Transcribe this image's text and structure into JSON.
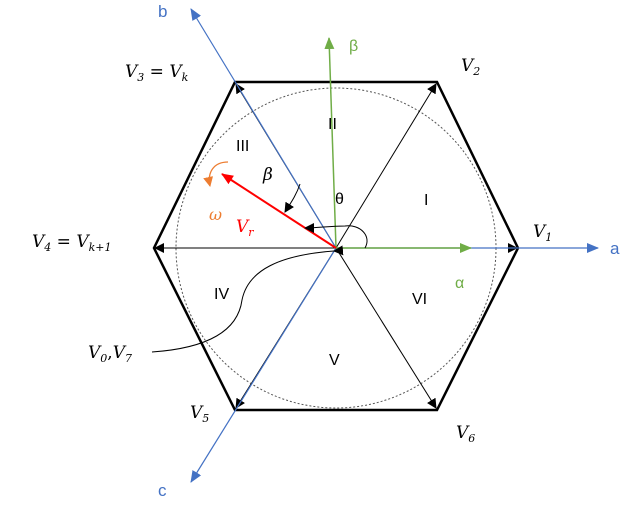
{
  "axes": {
    "a": "a",
    "b": "b",
    "c": "c",
    "alpha": "α",
    "beta": "β"
  },
  "vectors": {
    "v1": {
      "main": "V",
      "sub": "1"
    },
    "v2": {
      "main": "V",
      "sub": "2"
    },
    "v3": {
      "main": "V",
      "sub": "3",
      "eq": " = ",
      "main2": "V",
      "sub2": "k"
    },
    "v4": {
      "main": "V",
      "sub": "4",
      "eq": " = ",
      "main2": "V",
      "sub2": "k+1"
    },
    "v5": {
      "main": "V",
      "sub": "5"
    },
    "v6": {
      "main": "V",
      "sub": "6"
    },
    "zero": {
      "main": "V",
      "sub": "0",
      "sep": ",",
      "main2": "V",
      "sub2": "7"
    },
    "vr": {
      "main": "V",
      "sub": "r"
    }
  },
  "sectors": [
    "I",
    "II",
    "III",
    "IV",
    "V",
    "VI"
  ],
  "angles": {
    "theta": "θ",
    "beta_angle": "β",
    "omega": "ω"
  },
  "colors": {
    "abc_axis": "#4472C4",
    "alpha_beta_axis": "#70AD47",
    "reference_vector": "#FF0000",
    "omega": "#ED7D31",
    "hexagon": "#000000"
  }
}
